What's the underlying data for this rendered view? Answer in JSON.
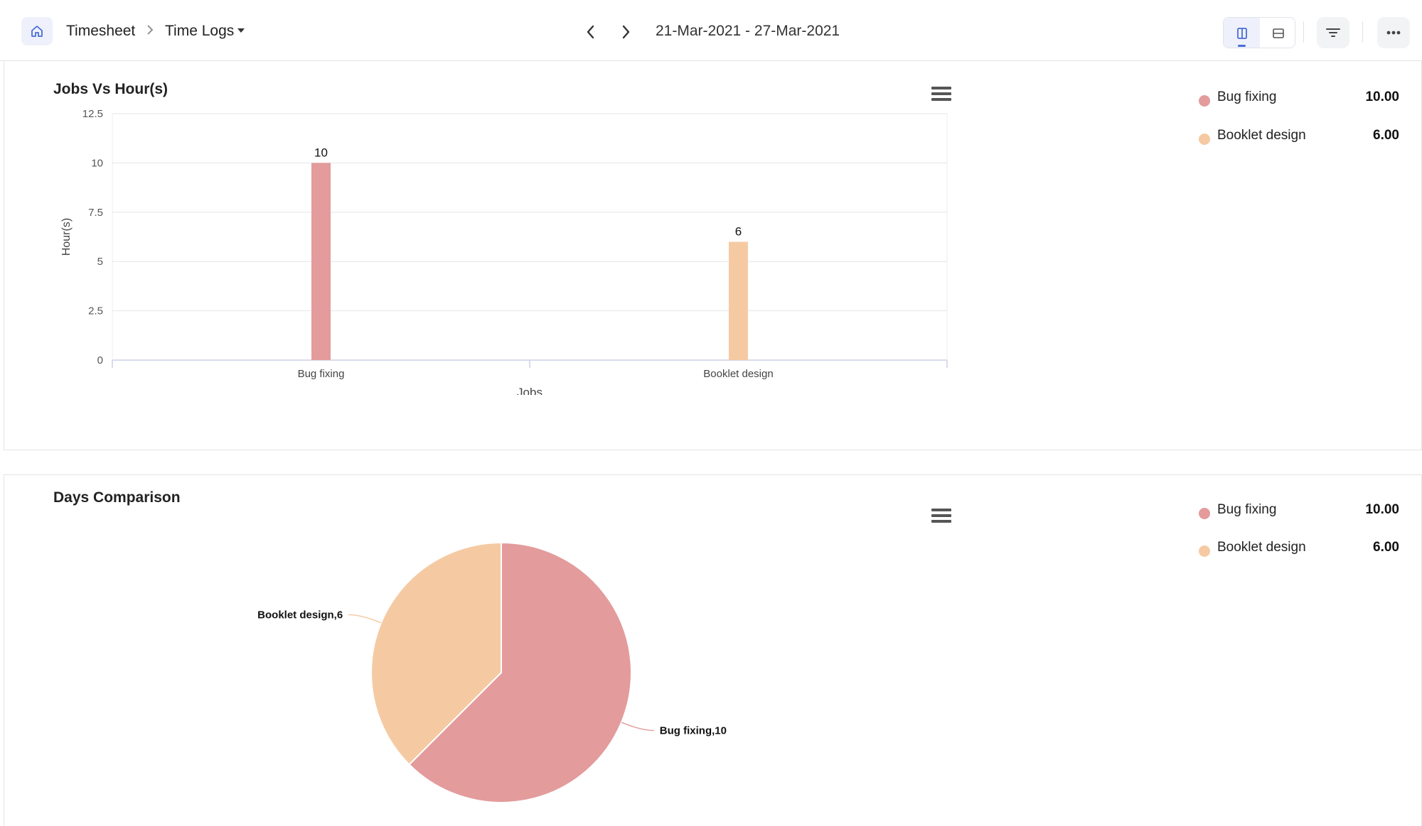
{
  "header": {
    "breadcrumb": {
      "root": "Timesheet",
      "current": "Time Logs"
    },
    "date_range": "21-Mar-2021 - 27-Mar-2021"
  },
  "colors": {
    "bug_fixing": "#e39b9c",
    "booklet_design": "#f5caa3",
    "accent": "#4a6cd6"
  },
  "icons": [
    "home-icon",
    "chevron-right-icon",
    "caret-down-icon",
    "chevron-left-icon",
    "chevron-right-icon",
    "column-view-icon",
    "row-view-icon",
    "filter-icon",
    "more-icon",
    "menu-icon"
  ],
  "jobs_panel": {
    "title": "Jobs Vs Hour(s)",
    "legend": [
      {
        "label": "Bug fixing",
        "value": "10.00",
        "color": "#e39b9c"
      },
      {
        "label": "Booklet design",
        "value": "6.00",
        "color": "#f5caa3"
      }
    ]
  },
  "days_panel": {
    "title": "Days Comparison",
    "legend": [
      {
        "label": "Bug fixing",
        "value": "10.00",
        "color": "#e39b9c"
      },
      {
        "label": "Booklet design",
        "value": "6.00",
        "color": "#f5caa3"
      }
    ]
  },
  "chart_data": [
    {
      "type": "bar",
      "title": "Jobs Vs Hour(s)",
      "categories": [
        "Bug fixing",
        "Booklet design"
      ],
      "values": [
        10,
        6
      ],
      "data_labels": [
        "10",
        "6"
      ],
      "colors": [
        "#e39b9c",
        "#f5caa3"
      ],
      "xlabel": "Jobs",
      "ylabel": "Hour(s)",
      "ylim": [
        0,
        12.5
      ],
      "yticks": [
        0,
        2.5,
        5,
        7.5,
        10,
        12.5
      ],
      "ytick_labels": [
        "0",
        "2.5",
        "5",
        "7.5",
        "10",
        "12.5"
      ],
      "grid": true
    },
    {
      "type": "pie",
      "title": "Days Comparison",
      "slices": [
        {
          "name": "Bug fixing",
          "value": 10,
          "color": "#e39b9c",
          "label": "Bug fixing,10"
        },
        {
          "name": "Booklet design",
          "value": 6,
          "color": "#f5caa3",
          "label": "Booklet design,6"
        }
      ]
    }
  ]
}
